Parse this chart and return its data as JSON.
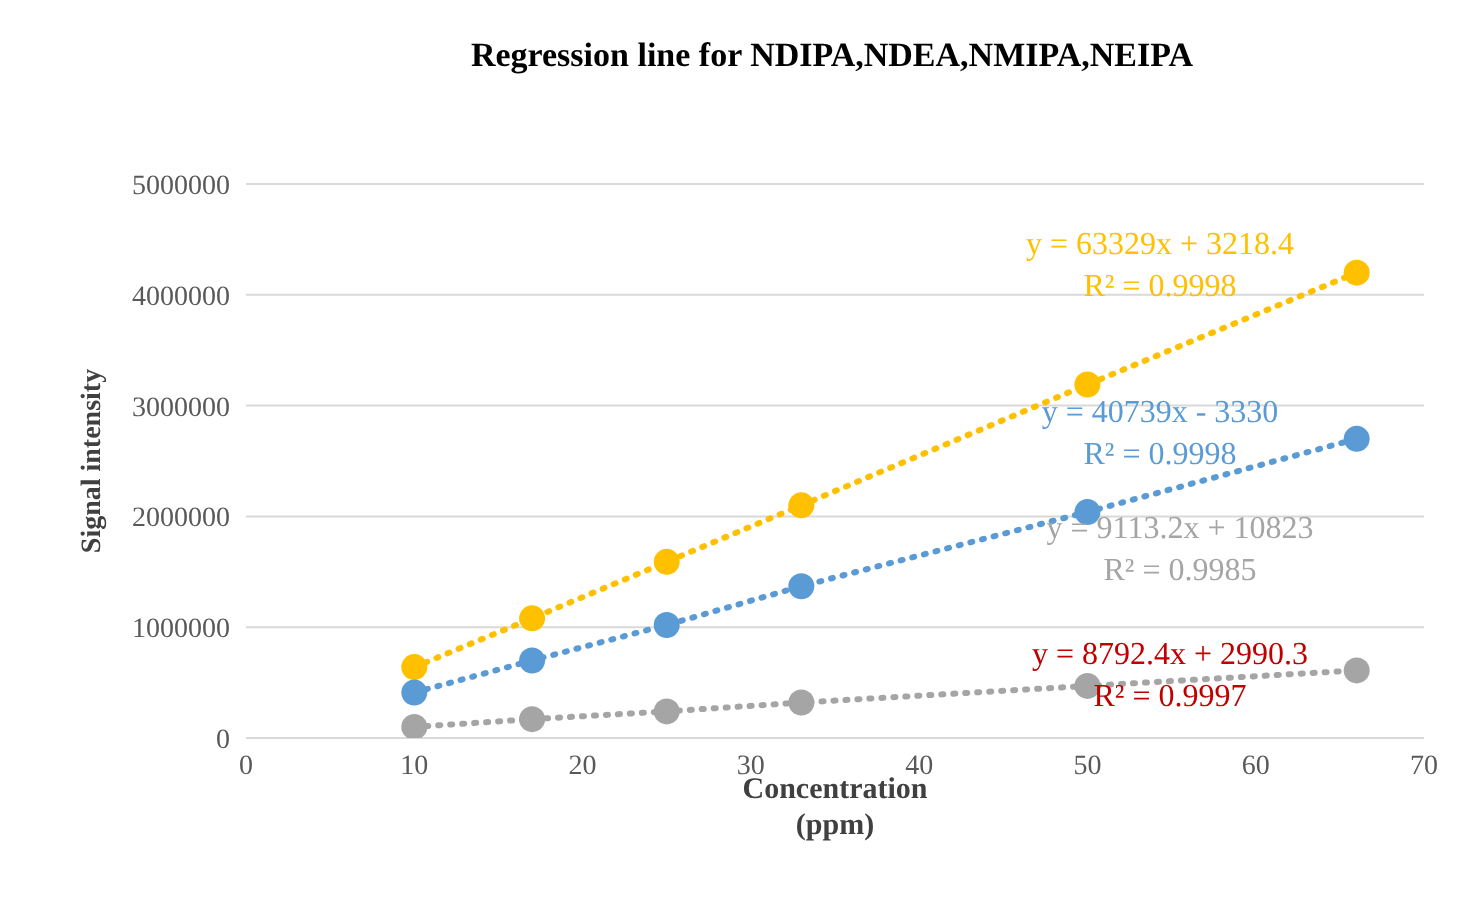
{
  "chart_data": {
    "type": "line",
    "title": "Regression line for NDIPA,NDEA,NMIPA,NEIPA",
    "xlabel": "Concentration\n(ppm)",
    "ylabel": "Signal intensity",
    "x": [
      10,
      17,
      25,
      33,
      50,
      66
    ],
    "series": [
      {
        "color": "#ffc000",
        "values": [
          640000,
          1080000,
          1590000,
          2100000,
          3190000,
          4200000
        ]
      },
      {
        "color": "#5b9bd5",
        "values": [
          410000,
          700000,
          1020000,
          1370000,
          2040000,
          2700000
        ]
      },
      {
        "color": "#a5a5a5",
        "values": [
          100000,
          170000,
          240000,
          320000,
          470000,
          610000
        ]
      },
      {
        "color": "#c00000",
        "values": [
          null,
          null,
          null,
          null,
          null,
          null
        ]
      }
    ],
    "annotations": [
      "y = 63329x + 3218.4\nR² = 0.9998",
      "y = 40739x - 3330\nR² = 0.9998",
      "y = 9113.2x + 10823\nR² = 0.9985",
      "y = 8792.4x + 2990.3\nR² = 0.9997"
    ],
    "xlim": [
      0,
      70
    ],
    "xticks": [
      0,
      10,
      20,
      30,
      40,
      50,
      60,
      70
    ],
    "ylim": [
      0,
      5000000
    ],
    "yticks": [
      0,
      1000000,
      2000000,
      3000000,
      4000000,
      5000000
    ],
    "grid": "y",
    "marker": "circle",
    "line_style": "dotted"
  }
}
